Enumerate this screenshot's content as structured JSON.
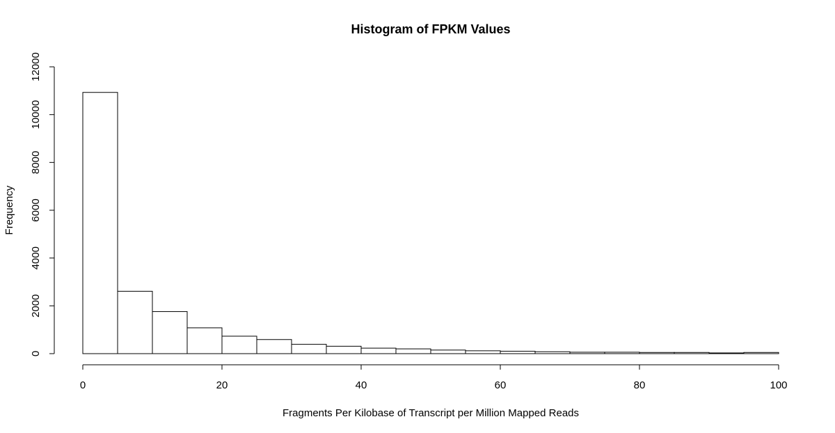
{
  "chart_data": {
    "type": "bar",
    "title": "Histogram of FPKM Values",
    "xlabel": "Fragments Per Kilobase of Transcript per Million Mapped Reads",
    "ylabel": "Frequency",
    "bin_edges": [
      0,
      5,
      10,
      15,
      20,
      25,
      30,
      35,
      40,
      45,
      50,
      55,
      60,
      65,
      70,
      75,
      80,
      85,
      90,
      95,
      100
    ],
    "values": [
      10930,
      2610,
      1760,
      1080,
      730,
      590,
      390,
      310,
      230,
      200,
      150,
      120,
      100,
      80,
      60,
      60,
      50,
      50,
      30,
      50
    ],
    "xlim": [
      0,
      100
    ],
    "ylim": [
      0,
      12000
    ],
    "x_ticks": [
      0,
      20,
      40,
      60,
      80,
      100
    ],
    "y_ticks": [
      0,
      2000,
      4000,
      6000,
      8000,
      10000,
      12000
    ],
    "grid": false,
    "legend": "none"
  }
}
